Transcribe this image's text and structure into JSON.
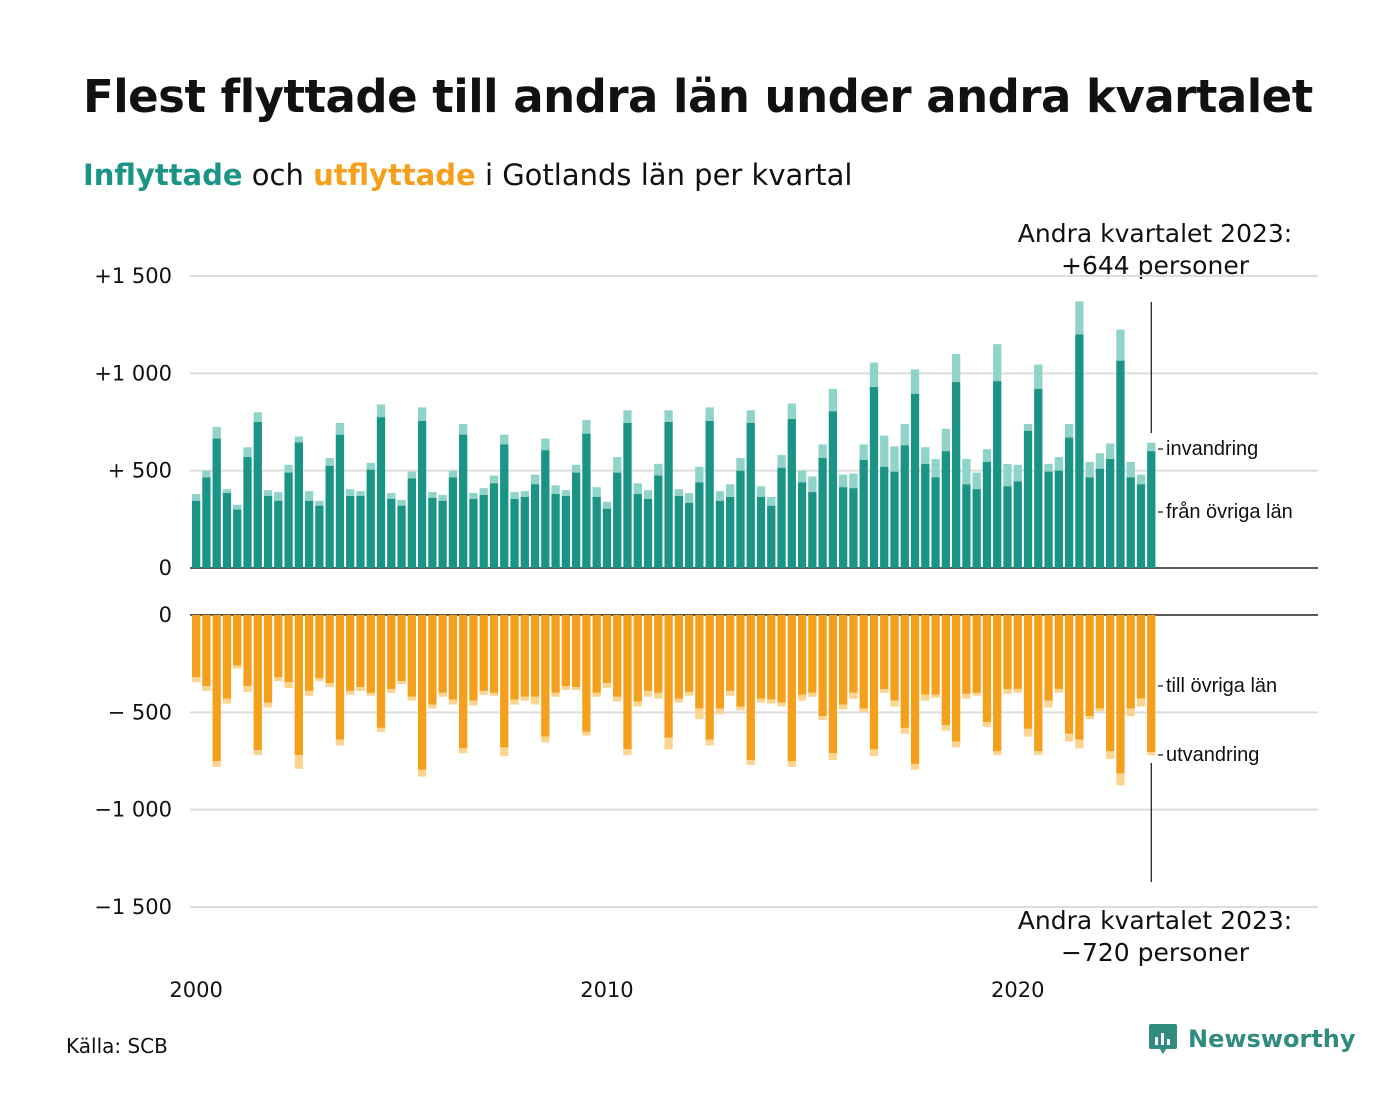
{
  "title": "Flest flyttade till andra län under andra kvartalet",
  "subtitle": {
    "in_word": "Inflyttade",
    "and_word": "och",
    "out_word": "utflyttade",
    "rest": "i Gotlands län per kvartal"
  },
  "annotations": {
    "top_line1": "Andra kvartalet 2023:",
    "top_line2": "+644 personer",
    "bottom_line1": "Andra kvartalet 2023:",
    "bottom_line2": "−720 personer"
  },
  "source": "Källa: SCB",
  "brand": "Newsworthy",
  "colors": {
    "in_domestic": "#1a9485",
    "in_immigration": "#8fd3c9",
    "out_domestic": "#f4a01c",
    "out_emigration": "#fbd48f",
    "grid": "#dddddd",
    "axis": "#222222",
    "brand": "#2f8c7e"
  },
  "chart_data": {
    "type": "bar",
    "stacked": true,
    "grid": true,
    "x_start": "2000 Q1",
    "x_end": "2023 Q2",
    "x_ticks": [
      {
        "label": "2000",
        "quarter_index": 0
      },
      {
        "label": "2010",
        "quarter_index": 40
      },
      {
        "label": "2020",
        "quarter_index": 80
      }
    ],
    "top_panel": {
      "ylim": [
        0,
        1500
      ],
      "y_ticks": [
        {
          "value": 0,
          "label": "0"
        },
        {
          "value": 500,
          "label": "+  500"
        },
        {
          "value": 1000,
          "label": "+1 000"
        },
        {
          "value": 1500,
          "label": "+1 500"
        }
      ],
      "series": [
        {
          "name": "från övriga län",
          "values": []
        },
        {
          "name": "invandring",
          "values": []
        }
      ],
      "domestic": [
        345,
        465,
        665,
        385,
        300,
        570,
        750,
        370,
        345,
        490,
        645,
        345,
        320,
        525,
        685,
        370,
        370,
        505,
        775,
        355,
        320,
        460,
        755,
        360,
        345,
        465,
        685,
        355,
        375,
        435,
        635,
        355,
        365,
        430,
        605,
        380,
        370,
        490,
        690,
        365,
        305,
        490,
        745,
        380,
        355,
        475,
        750,
        370,
        335,
        440,
        755,
        345,
        365,
        500,
        745,
        365,
        320,
        515,
        765,
        440,
        390,
        565,
        805,
        415,
        410,
        555,
        930,
        520,
        495,
        630,
        895,
        535,
        465,
        600,
        955,
        430,
        405,
        545,
        960,
        420,
        445,
        705,
        920,
        495,
        500,
        670,
        1200,
        465,
        510,
        560,
        1065,
        465,
        430,
        600
      ],
      "total": [
        380,
        500,
        725,
        405,
        325,
        620,
        800,
        400,
        390,
        530,
        675,
        395,
        345,
        565,
        745,
        405,
        395,
        540,
        840,
        385,
        350,
        495,
        825,
        390,
        375,
        500,
        740,
        385,
        410,
        475,
        685,
        390,
        395,
        480,
        665,
        425,
        400,
        530,
        760,
        415,
        340,
        570,
        810,
        435,
        400,
        535,
        810,
        405,
        385,
        520,
        825,
        395,
        430,
        565,
        810,
        420,
        365,
        580,
        845,
        500,
        470,
        635,
        920,
        480,
        485,
        635,
        1055,
        680,
        625,
        740,
        1020,
        620,
        560,
        715,
        1100,
        560,
        490,
        610,
        1150,
        535,
        530,
        740,
        1045,
        535,
        570,
        740,
        1370,
        545,
        590,
        640,
        1225,
        545,
        480,
        644
      ],
      "inline_labels": {
        "invandring": "invandring",
        "fran": "från övriga län"
      }
    },
    "bottom_panel": {
      "ylim": [
        -1500,
        0
      ],
      "y_ticks": [
        {
          "value": 0,
          "label": "0"
        },
        {
          "value": -500,
          "label": "−  500"
        },
        {
          "value": -1000,
          "label": "−1 000"
        },
        {
          "value": -1500,
          "label": "−1 500"
        }
      ],
      "domestic": [
        320,
        365,
        750,
        430,
        260,
        365,
        695,
        450,
        320,
        345,
        720,
        390,
        325,
        350,
        640,
        390,
        370,
        400,
        580,
        380,
        340,
        420,
        795,
        460,
        400,
        435,
        685,
        440,
        390,
        400,
        680,
        435,
        420,
        420,
        625,
        400,
        365,
        370,
        600,
        400,
        350,
        420,
        690,
        445,
        390,
        400,
        630,
        430,
        395,
        480,
        640,
        480,
        390,
        470,
        745,
        430,
        435,
        450,
        750,
        410,
        400,
        520,
        710,
        460,
        400,
        480,
        690,
        380,
        440,
        580,
        765,
        410,
        410,
        565,
        650,
        405,
        400,
        550,
        700,
        380,
        380,
        585,
        700,
        440,
        380,
        610,
        640,
        520,
        480,
        700,
        815,
        480,
        430,
        705
      ],
      "total": [
        345,
        390,
        780,
        455,
        275,
        395,
        720,
        475,
        340,
        375,
        790,
        415,
        340,
        370,
        670,
        410,
        390,
        415,
        600,
        400,
        355,
        440,
        830,
        480,
        420,
        460,
        710,
        465,
        410,
        415,
        725,
        460,
        440,
        460,
        655,
        420,
        385,
        385,
        620,
        420,
        375,
        445,
        720,
        470,
        420,
        430,
        690,
        450,
        415,
        535,
        670,
        510,
        415,
        490,
        770,
        450,
        455,
        470,
        780,
        440,
        420,
        540,
        745,
        485,
        430,
        500,
        725,
        400,
        470,
        610,
        795,
        440,
        425,
        595,
        680,
        430,
        415,
        575,
        720,
        405,
        400,
        625,
        720,
        475,
        400,
        650,
        685,
        535,
        495,
        740,
        875,
        520,
        470,
        720
      ],
      "inline_labels": {
        "till": "till övriga län",
        "utvandring": "utvandring"
      }
    }
  }
}
